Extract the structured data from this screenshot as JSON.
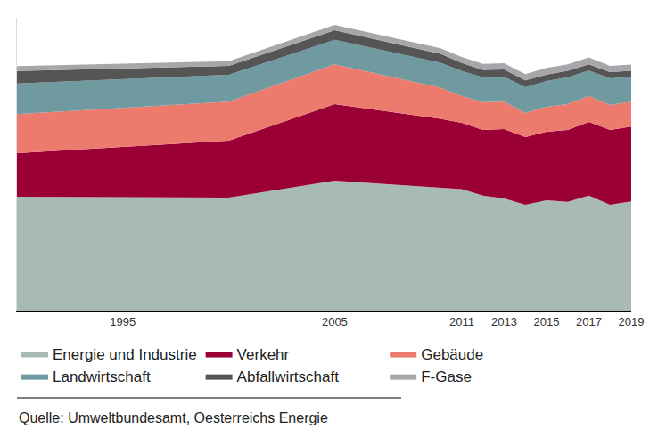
{
  "chart_data": {
    "type": "area",
    "stacked": true,
    "x": [
      1990,
      2000,
      2005,
      2010,
      2011,
      2012,
      2013,
      2014,
      2015,
      2016,
      2017,
      2018,
      2019
    ],
    "series": [
      {
        "name": "Energie und Industrie",
        "color": "#a8bbb3",
        "values": [
          36.6,
          36.3,
          41.7,
          39.5,
          39.0,
          36.9,
          36.0,
          34.0,
          35.4,
          34.9,
          36.9,
          34.0,
          35.1
        ]
      },
      {
        "name": "Verkehr",
        "color": "#9a0036",
        "values": [
          14.0,
          18.3,
          24.6,
          22.1,
          21.3,
          21.1,
          22.3,
          21.7,
          22.0,
          23.1,
          23.7,
          24.0,
          24.0
        ]
      },
      {
        "name": "Gebäude",
        "color": "#ec7b6e",
        "values": [
          12.5,
          12.5,
          12.8,
          10.0,
          8.6,
          8.9,
          8.8,
          7.7,
          8.0,
          8.3,
          8.3,
          8.0,
          8.0
        ]
      },
      {
        "name": "Landwirtschaft",
        "color": "#6f9ba0",
        "values": [
          9.8,
          8.6,
          7.8,
          8.0,
          8.0,
          8.0,
          8.0,
          8.3,
          8.3,
          8.6,
          8.2,
          8.6,
          8.0
        ]
      },
      {
        "name": "Abfallwirtschaft",
        "color": "#555555",
        "values": [
          4.0,
          2.9,
          3.1,
          2.8,
          2.6,
          2.4,
          2.3,
          2.2,
          2.1,
          2.1,
          2.0,
          2.0,
          1.9
        ]
      },
      {
        "name": "F-Gase",
        "color": "#a9a6ab",
        "values": [
          1.6,
          1.5,
          1.7,
          1.8,
          1.9,
          1.9,
          2.0,
          2.0,
          2.1,
          2.1,
          2.2,
          2.0,
          2.0
        ]
      }
    ],
    "xlim": [
      1990,
      2019
    ],
    "xticks": [
      1995,
      2005,
      2011,
      2013,
      2015,
      2017,
      2019
    ],
    "ylim": [
      0,
      94
    ],
    "tick_labels": "x",
    "grid": false,
    "legend": "bottom",
    "source": "Quelle: Umweltbundesamt, Oesterreichs Energie"
  }
}
